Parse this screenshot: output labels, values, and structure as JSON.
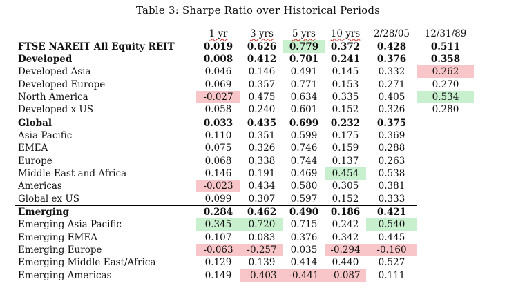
{
  "title": "Table 3: Sharpe Ratio over Historical Periods",
  "columns": [
    "1 yr",
    "3 yrs",
    "5 yrs",
    "10 yrs",
    "2/28/05",
    "12/31/89"
  ],
  "colors": {
    "green_highlight": "#c8efce",
    "red_highlight": "#f8c6c9"
  },
  "rows": [
    {
      "label": "FTSE NAREIT All Equity REIT",
      "bold": true,
      "sep": false,
      "values": [
        "0.019",
        "0.626",
        "0.779",
        "0.372",
        "0.428",
        "0.511"
      ],
      "hl": [
        "",
        "",
        "g",
        "",
        "",
        ""
      ]
    },
    {
      "label": "Developed",
      "bold": true,
      "sep": false,
      "values": [
        "0.008",
        "0.412",
        "0.701",
        "0.241",
        "0.376",
        "0.358"
      ],
      "hl": [
        "",
        "",
        "",
        "",
        "",
        ""
      ]
    },
    {
      "label": "Developed Asia",
      "bold": false,
      "sep": false,
      "values": [
        "0.046",
        "0.146",
        "0.491",
        "0.145",
        "0.332",
        "0.262"
      ],
      "hl": [
        "",
        "",
        "",
        "",
        "",
        "r"
      ]
    },
    {
      "label": "Developed Europe",
      "bold": false,
      "sep": false,
      "values": [
        "0.069",
        "0.357",
        "0.771",
        "0.153",
        "0.271",
        "0.270"
      ],
      "hl": [
        "",
        "",
        "",
        "",
        "",
        ""
      ]
    },
    {
      "label": "North America",
      "bold": false,
      "sep": false,
      "values": [
        "-0.027",
        "0.475",
        "0.634",
        "0.335",
        "0.405",
        "0.534"
      ],
      "hl": [
        "r",
        "",
        "",
        "",
        "",
        "g"
      ]
    },
    {
      "label": "Developed x US",
      "bold": false,
      "sep": false,
      "values": [
        "0.058",
        "0.240",
        "0.601",
        "0.152",
        "0.326",
        "0.280"
      ],
      "hl": [
        "",
        "",
        "",
        "",
        "",
        ""
      ]
    },
    {
      "label": "Global",
      "bold": true,
      "sep": true,
      "values": [
        "0.033",
        "0.435",
        "0.699",
        "0.232",
        "0.375",
        ""
      ],
      "hl": [
        "",
        "",
        "",
        "",
        "",
        ""
      ]
    },
    {
      "label": "Asia Pacific",
      "bold": false,
      "sep": false,
      "values": [
        "0.110",
        "0.351",
        "0.599",
        "0.175",
        "0.369",
        ""
      ],
      "hl": [
        "",
        "",
        "",
        "",
        "",
        ""
      ]
    },
    {
      "label": "EMEA",
      "bold": false,
      "sep": false,
      "values": [
        "0.075",
        "0.326",
        "0.746",
        "0.159",
        "0.288",
        ""
      ],
      "hl": [
        "",
        "",
        "",
        "",
        "",
        ""
      ]
    },
    {
      "label": "Europe",
      "bold": false,
      "sep": false,
      "values": [
        "0.068",
        "0.338",
        "0.744",
        "0.137",
        "0.263",
        ""
      ],
      "hl": [
        "",
        "",
        "",
        "",
        "",
        ""
      ]
    },
    {
      "label": "Middle East and Africa",
      "bold": false,
      "sep": false,
      "values": [
        "0.146",
        "0.191",
        "0.469",
        "0.454",
        "0.538",
        ""
      ],
      "hl": [
        "",
        "",
        "",
        "g",
        "",
        ""
      ]
    },
    {
      "label": "Americas",
      "bold": false,
      "sep": false,
      "values": [
        "-0.023",
        "0.434",
        "0.580",
        "0.305",
        "0.381",
        ""
      ],
      "hl": [
        "r",
        "",
        "",
        "",
        "",
        ""
      ]
    },
    {
      "label": "Global ex US",
      "bold": false,
      "sep": false,
      "values": [
        "0.099",
        "0.307",
        "0.597",
        "0.152",
        "0.333",
        ""
      ],
      "hl": [
        "",
        "",
        "",
        "",
        "",
        ""
      ]
    },
    {
      "label": "Emerging",
      "bold": true,
      "sep": true,
      "values": [
        "0.284",
        "0.462",
        "0.490",
        "0.186",
        "0.421",
        ""
      ],
      "hl": [
        "",
        "",
        "",
        "",
        "",
        ""
      ]
    },
    {
      "label": "Emerging Asia Pacific",
      "bold": false,
      "sep": false,
      "values": [
        "0.345",
        "0.720",
        "0.715",
        "0.242",
        "0.540",
        ""
      ],
      "hl": [
        "g",
        "g",
        "",
        "",
        "g",
        ""
      ]
    },
    {
      "label": "Emerging EMEA",
      "bold": false,
      "sep": false,
      "values": [
        "0.107",
        "0.083",
        "0.376",
        "0.342",
        "0.445",
        ""
      ],
      "hl": [
        "",
        "",
        "",
        "",
        "",
        ""
      ]
    },
    {
      "label": "Emerging Europe",
      "bold": false,
      "sep": false,
      "values": [
        "-0.063",
        "-0.257",
        "0.035",
        "-0.294",
        "-0.160",
        ""
      ],
      "hl": [
        "r",
        "r",
        "",
        "r",
        "r",
        ""
      ]
    },
    {
      "label": "Emerging Middle East/Africa",
      "bold": false,
      "sep": false,
      "values": [
        "0.129",
        "0.139",
        "0.414",
        "0.440",
        "0.527",
        ""
      ],
      "hl": [
        "",
        "",
        "",
        "",
        "",
        ""
      ]
    },
    {
      "label": "Emerging Americas",
      "bold": false,
      "sep": false,
      "values": [
        "0.149",
        "-0.403",
        "-0.441",
        "-0.087",
        "0.111",
        ""
      ],
      "hl": [
        "",
        "r",
        "r",
        "r",
        "",
        ""
      ]
    }
  ]
}
